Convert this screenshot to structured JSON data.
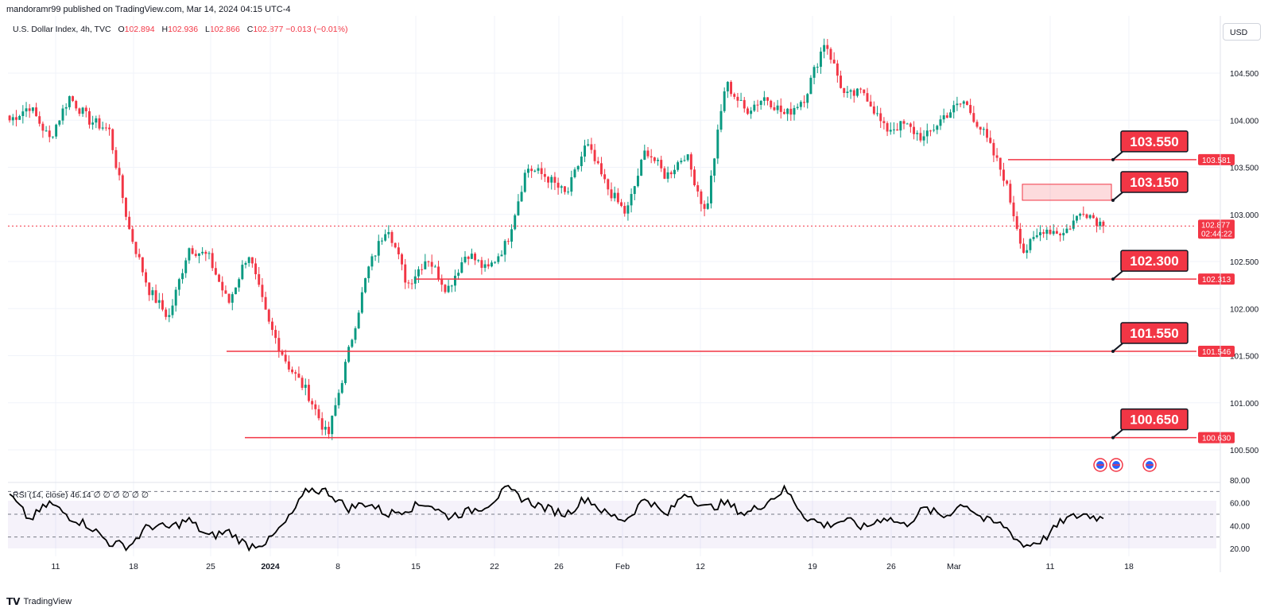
{
  "header": {
    "publisher": "mandoramr99 published on TradingView.com, Mar 14, 2024 04:15 UTC-4"
  },
  "legend": {
    "symbol": "U.S. Dollar Index, 4h, TVC",
    "o_label": "O",
    "o": "102.894",
    "h_label": "H",
    "h": "102.936",
    "l_label": "L",
    "l": "102.866",
    "c_label": "C",
    "c": "102.877",
    "change": "−0.013 (−0.01%)"
  },
  "currency_button": "USD",
  "rsi_legend": "RSI (14, close)  46.14  ∅  ∅  ∅  ∅  ∅  ∅",
  "footer": {
    "logo": "TradingView"
  },
  "colors": {
    "up": "#089981",
    "down": "#f23645",
    "level": "#f23645",
    "rsi": "#000000",
    "rsi_band": "#7e57c2"
  },
  "chart_data": {
    "type": "candlestick",
    "title": "U.S. Dollar Index, 4h, TVC",
    "y_ticks": [
      "104.500",
      "104.000",
      "103.500",
      "103.000",
      "102.500",
      "102.000",
      "101.500",
      "101.000",
      "100.500"
    ],
    "ylim": [
      100.5,
      104.9
    ],
    "x_ticks": [
      "11",
      "18",
      "25",
      "2024",
      "8",
      "15",
      "22",
      "26",
      "Feb",
      "12",
      "19",
      "26",
      "Mar",
      "11",
      "18"
    ],
    "current_price": {
      "value": "102.877",
      "countdown": "02:44:22"
    },
    "levels": [
      {
        "label": "103.550",
        "axis": "103.581",
        "value": 103.581
      },
      {
        "label": "103.150",
        "value": 103.15
      },
      {
        "label": "102.300",
        "axis": "102.313",
        "value": 102.313
      },
      {
        "label": "101.550",
        "axis": "101.546",
        "value": 101.546
      },
      {
        "label": "100.650",
        "axis": "100.630",
        "value": 100.63
      }
    ],
    "zone": {
      "top": 103.32,
      "bottom": 103.15
    },
    "price_path": [
      104.0,
      104.15,
      103.8,
      104.25,
      104.0,
      103.9,
      102.85,
      102.2,
      101.9,
      102.65,
      102.55,
      102.05,
      102.6,
      101.85,
      101.4,
      101.1,
      100.63,
      101.5,
      102.4,
      102.9,
      102.25,
      102.55,
      102.2,
      102.6,
      102.4,
      102.7,
      103.5,
      103.4,
      103.2,
      103.75,
      103.3,
      103.0,
      103.7,
      103.4,
      103.65,
      103.0,
      104.4,
      104.1,
      104.25,
      104.05,
      104.25,
      104.85,
      104.25,
      104.3,
      103.9,
      103.95,
      103.8,
      104.05,
      104.2,
      103.85,
      103.4,
      102.6,
      102.85,
      102.8,
      103.05,
      102.88
    ],
    "rsi": {
      "period": 14,
      "value": 46.14,
      "levels": [
        70,
        50,
        30
      ],
      "y_ticks": [
        "80.00",
        "60.00",
        "40.00",
        "20.00"
      ],
      "ylim": [
        15,
        82
      ],
      "values": [
        67,
        45,
        60,
        48,
        40,
        25,
        22,
        40,
        38,
        45,
        30,
        35,
        22,
        26,
        45,
        72,
        70,
        55,
        60,
        50,
        55,
        60,
        48,
        52,
        58,
        72,
        62,
        55,
        50,
        65,
        50,
        45,
        65,
        48,
        70,
        55,
        60,
        50,
        60,
        72,
        48,
        40,
        45,
        38,
        48,
        40,
        55,
        48,
        60,
        45,
        40,
        22,
        28,
        45,
        50,
        46.14
      ]
    }
  }
}
